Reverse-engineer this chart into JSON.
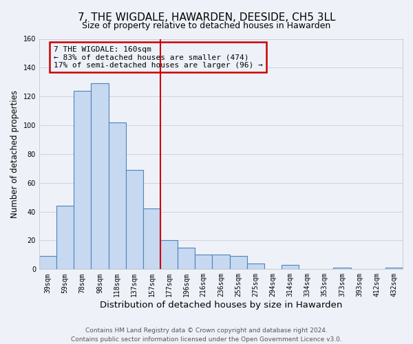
{
  "title": "7, THE WIGDALE, HAWARDEN, DEESIDE, CH5 3LL",
  "subtitle": "Size of property relative to detached houses in Hawarden",
  "xlabel": "Distribution of detached houses by size in Hawarden",
  "ylabel": "Number of detached properties",
  "categories": [
    "39sqm",
    "59sqm",
    "78sqm",
    "98sqm",
    "118sqm",
    "137sqm",
    "157sqm",
    "177sqm",
    "196sqm",
    "216sqm",
    "236sqm",
    "255sqm",
    "275sqm",
    "294sqm",
    "314sqm",
    "334sqm",
    "353sqm",
    "373sqm",
    "393sqm",
    "412sqm",
    "432sqm"
  ],
  "values": [
    9,
    44,
    124,
    129,
    102,
    69,
    42,
    20,
    15,
    10,
    10,
    9,
    4,
    0,
    3,
    0,
    0,
    1,
    0,
    0,
    1
  ],
  "bar_color": "#c6d9f0",
  "bar_edge_color": "#4f81bd",
  "vline_color": "#cc0000",
  "annotation_line1": "7 THE WIGDALE: 160sqm",
  "annotation_line2": "← 83% of detached houses are smaller (474)",
  "annotation_line3": "17% of semi-detached houses are larger (96) →",
  "annotation_box_color": "#cc0000",
  "ylim": [
    0,
    160
  ],
  "yticks": [
    0,
    20,
    40,
    60,
    80,
    100,
    120,
    140,
    160
  ],
  "footer": "Contains HM Land Registry data © Crown copyright and database right 2024.\nContains public sector information licensed under the Open Government Licence v3.0.",
  "background_color": "#eef2f8",
  "grid_color": "#c8cdd8",
  "title_fontsize": 11,
  "subtitle_fontsize": 9,
  "xlabel_fontsize": 9.5,
  "ylabel_fontsize": 8.5,
  "tick_fontsize": 7,
  "footer_fontsize": 6.5,
  "annotation_fontsize": 8
}
